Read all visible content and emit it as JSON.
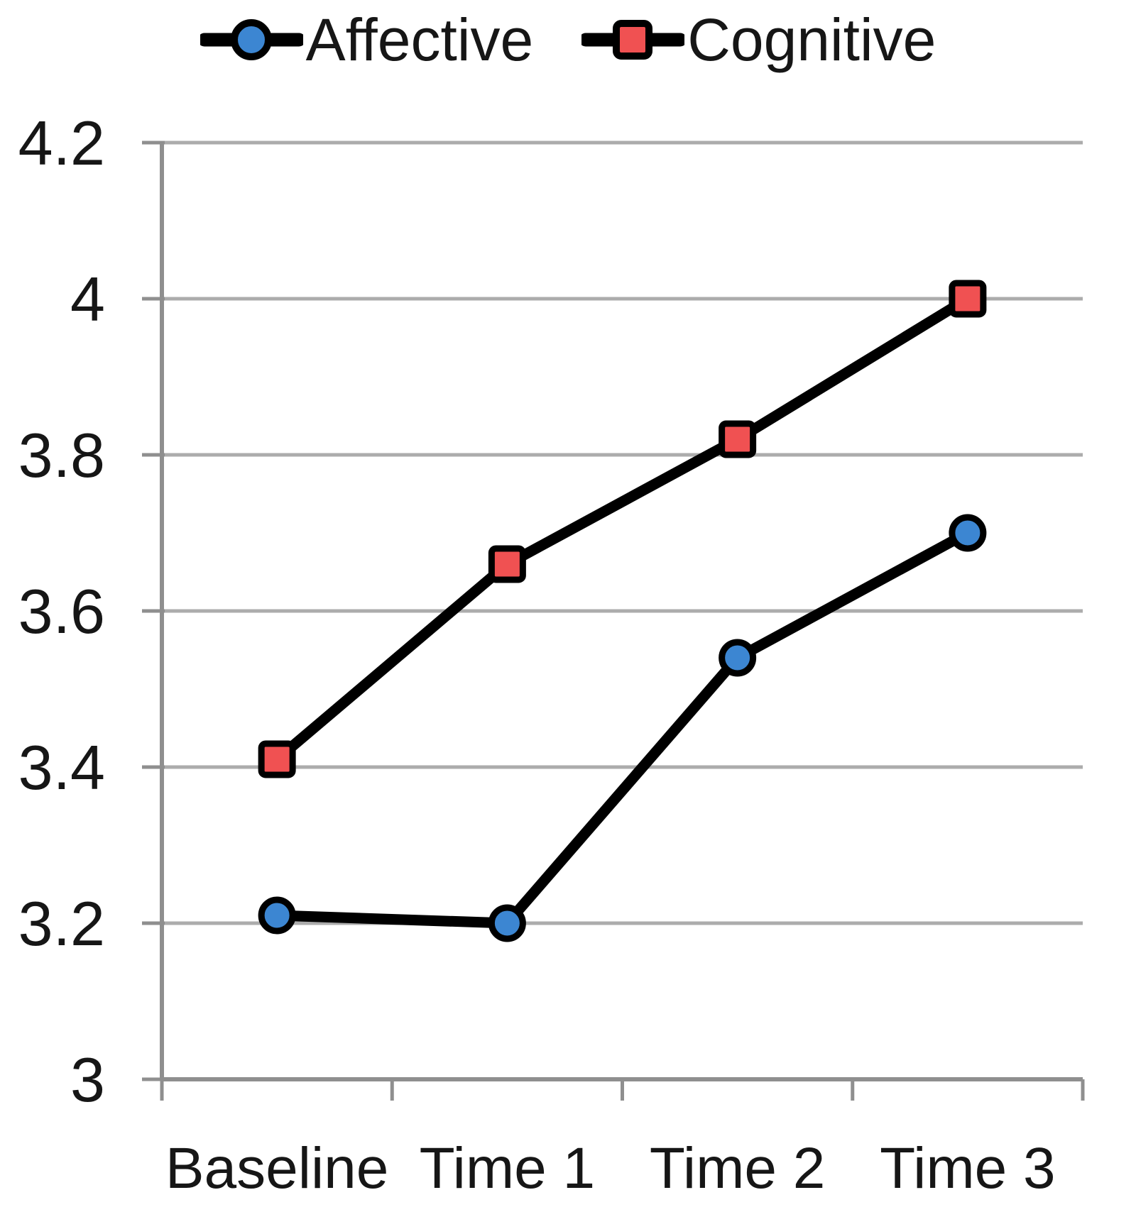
{
  "chart_data": {
    "type": "line",
    "categories": [
      "Baseline",
      "Time 1",
      "Time 2",
      "Time 3"
    ],
    "series": [
      {
        "name": "Affective",
        "marker": "circle",
        "color": "#3C86D2",
        "values": [
          3.21,
          3.2,
          3.54,
          3.7
        ]
      },
      {
        "name": "Cognitive",
        "marker": "square",
        "color": "#F05152",
        "values": [
          3.41,
          3.66,
          3.82,
          4.0
        ]
      }
    ],
    "ylim": [
      3.0,
      4.2
    ],
    "ytick_values": [
      3,
      3.2,
      3.4,
      3.6,
      3.8,
      4,
      4.2
    ],
    "ytick_labels": [
      "3",
      "3.2",
      "3.4",
      "3.6",
      "3.8",
      "4",
      "4.2"
    ],
    "grid": "horizontal",
    "legend_position": "top",
    "line_color": "#000000",
    "gridline_color": "#ACACAC",
    "axis_color": "#8F8F8F",
    "text_color": "#161616",
    "marker_outline_color": "#000000"
  }
}
